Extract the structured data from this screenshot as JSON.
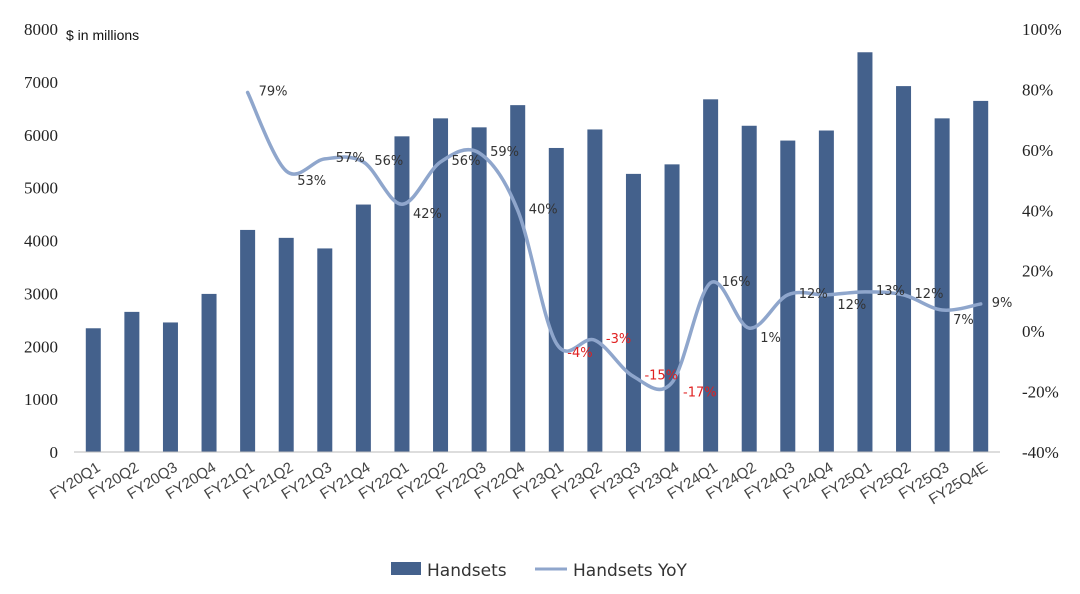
{
  "chart_data": {
    "type": "bar",
    "unit_label": "$ in millions",
    "categories": [
      "FY20Q1",
      "FY20Q2",
      "FY20Q3",
      "FY20Q4",
      "FY21Q1",
      "FY21Q2",
      "FY21Q3",
      "FY21Q4",
      "FY22Q1",
      "FY22Q2",
      "FY22Q3",
      "FY22Q4",
      "FY23Q1",
      "FY23Q2",
      "FY23Q3",
      "FY23Q4",
      "FY24Q1",
      "FY24Q2",
      "FY24Q3",
      "FY24Q4",
      "FY25Q1",
      "FY25Q2",
      "FY25Q3",
      "FY25Q4E"
    ],
    "series": [
      {
        "name": "Handsets",
        "type": "bar",
        "axis": "left",
        "color": "#44618c",
        "values": [
          2340,
          2650,
          2450,
          2990,
          4200,
          4050,
          3850,
          4680,
          5970,
          6310,
          6140,
          6560,
          5750,
          6100,
          5260,
          5440,
          6670,
          6170,
          5890,
          6080,
          7560,
          6920,
          6310,
          6640
        ]
      },
      {
        "name": "Handsets YoY",
        "type": "line",
        "axis": "right",
        "color": "#8fa6cc",
        "values": [
          null,
          null,
          null,
          null,
          79,
          53,
          57,
          56,
          42,
          56,
          59,
          40,
          -4,
          -3,
          -15,
          -17,
          16,
          1,
          12,
          12,
          13,
          12,
          7,
          9
        ],
        "labels": [
          "",
          "",
          "",
          "",
          "79%",
          "53%",
          "57%",
          "56%",
          "42%",
          "56%",
          "59%",
          "40%",
          "-4%",
          "-3%",
          "-15%",
          "-17%",
          "16%",
          "1%",
          "12%",
          "12%",
          "13%",
          "12%",
          "7%",
          "9%"
        ]
      }
    ],
    "y_left": {
      "min": 0,
      "max": 8000,
      "ticks": [
        0,
        1000,
        2000,
        3000,
        4000,
        5000,
        6000,
        7000,
        8000
      ]
    },
    "y_right": {
      "min": -40,
      "max": 100,
      "ticks": [
        "-40%",
        "-20%",
        "0%",
        "20%",
        "40%",
        "60%",
        "80%",
        "100%"
      ]
    },
    "legend": {
      "placement": "bottom",
      "items": [
        "Handsets",
        "Handsets YoY"
      ]
    },
    "negative_label_color": "#e02020",
    "grid": false
  }
}
